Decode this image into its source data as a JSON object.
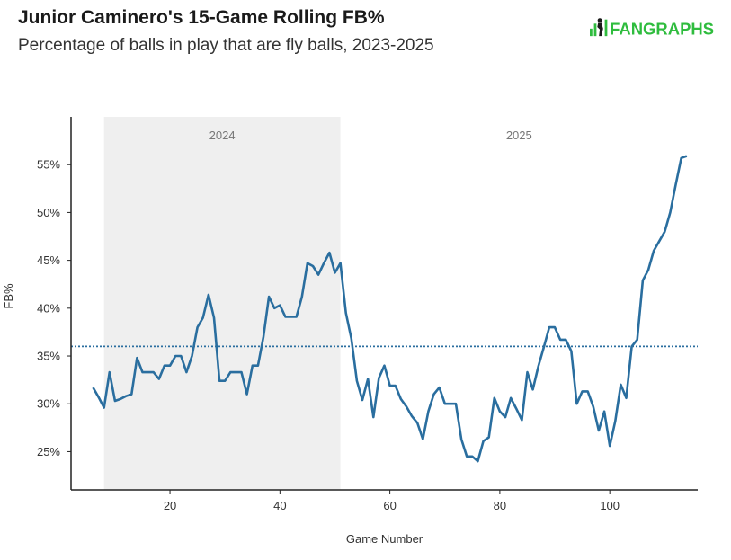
{
  "header": {
    "title": "Junior Caminero's 15-Game Rolling FB%",
    "subtitle": "Percentage of balls in play that are fly balls, 2023-2025",
    "logo_text": "FANGRAPHS",
    "logo_color": "#2fbc3e"
  },
  "chart_data": {
    "type": "line",
    "xlabel": "Game Number",
    "ylabel": "FB%",
    "xlim": [
      2,
      116
    ],
    "ylim": [
      21,
      60
    ],
    "x_ticks": [
      20,
      40,
      60,
      80,
      100
    ],
    "y_ticks": [
      25,
      30,
      35,
      40,
      45,
      50,
      55
    ],
    "y_tick_suffix": "%",
    "line_color": "#2a6e9f",
    "reference_line": {
      "y": 36.0,
      "style": "dotted",
      "color": "#2a6e9f"
    },
    "periods": [
      {
        "label": "2024",
        "x_start": 8,
        "x_end": 51,
        "shaded": true,
        "shade_color": "#efefef"
      },
      {
        "label": "2025",
        "x_start": 51,
        "x_end": 116,
        "shaded": false
      }
    ],
    "series": [
      {
        "x": [
          6,
          7,
          8,
          9,
          10,
          11,
          12,
          13,
          14,
          15,
          16,
          17,
          18,
          19,
          20,
          21,
          22,
          23,
          24,
          25,
          26,
          27,
          28,
          29,
          30,
          31,
          32,
          33,
          34,
          35,
          36,
          37,
          38,
          39,
          40,
          41,
          42,
          43,
          44,
          45,
          46,
          47,
          48,
          49,
          50,
          51,
          52,
          53,
          54,
          55,
          56,
          57,
          58,
          59,
          60,
          61,
          62,
          63,
          64,
          65,
          66,
          67,
          68,
          69,
          70,
          71,
          72,
          73,
          74,
          75,
          76,
          77,
          78,
          79,
          80,
          81,
          82,
          83,
          84,
          85,
          86,
          87,
          88,
          89,
          90,
          91,
          92,
          93,
          94,
          95,
          96,
          97,
          98,
          99,
          100,
          101,
          102,
          103,
          104,
          105,
          106,
          107,
          108,
          109,
          110,
          111,
          112,
          113,
          114
        ],
        "y": [
          31.7,
          30.7,
          29.6,
          33.3,
          30.3,
          30.5,
          30.8,
          31.0,
          34.8,
          33.3,
          33.3,
          33.3,
          32.6,
          34.0,
          34.0,
          35.0,
          35.0,
          33.3,
          35.0,
          38.0,
          39.0,
          41.4,
          39.0,
          32.4,
          32.4,
          33.3,
          33.3,
          33.3,
          31.0,
          34.0,
          34.0,
          37.0,
          41.2,
          40.0,
          40.3,
          39.1,
          39.1,
          39.1,
          41.2,
          44.7,
          44.4,
          43.5,
          44.7,
          45.8,
          43.7,
          44.7,
          39.5,
          36.8,
          32.4,
          30.4,
          32.6,
          28.6,
          32.7,
          34.0,
          31.9,
          31.9,
          30.5,
          29.7,
          28.7,
          28.0,
          26.3,
          29.2,
          31.0,
          31.7,
          30.0,
          30.0,
          30.0,
          26.3,
          24.5,
          24.5,
          24.0,
          26.1,
          26.5,
          30.6,
          29.2,
          28.6,
          30.6,
          29.5,
          28.3,
          33.3,
          31.5,
          33.9,
          35.9,
          38.0,
          38.0,
          36.7,
          36.7,
          35.5,
          30.0,
          31.3,
          31.3,
          29.7,
          27.2,
          29.2,
          25.6,
          28.2,
          32.0,
          30.6,
          36.0,
          36.7,
          42.9,
          44.0,
          46.0,
          47.0,
          48.0,
          50.0,
          52.9,
          55.7,
          55.9
        ]
      }
    ]
  }
}
